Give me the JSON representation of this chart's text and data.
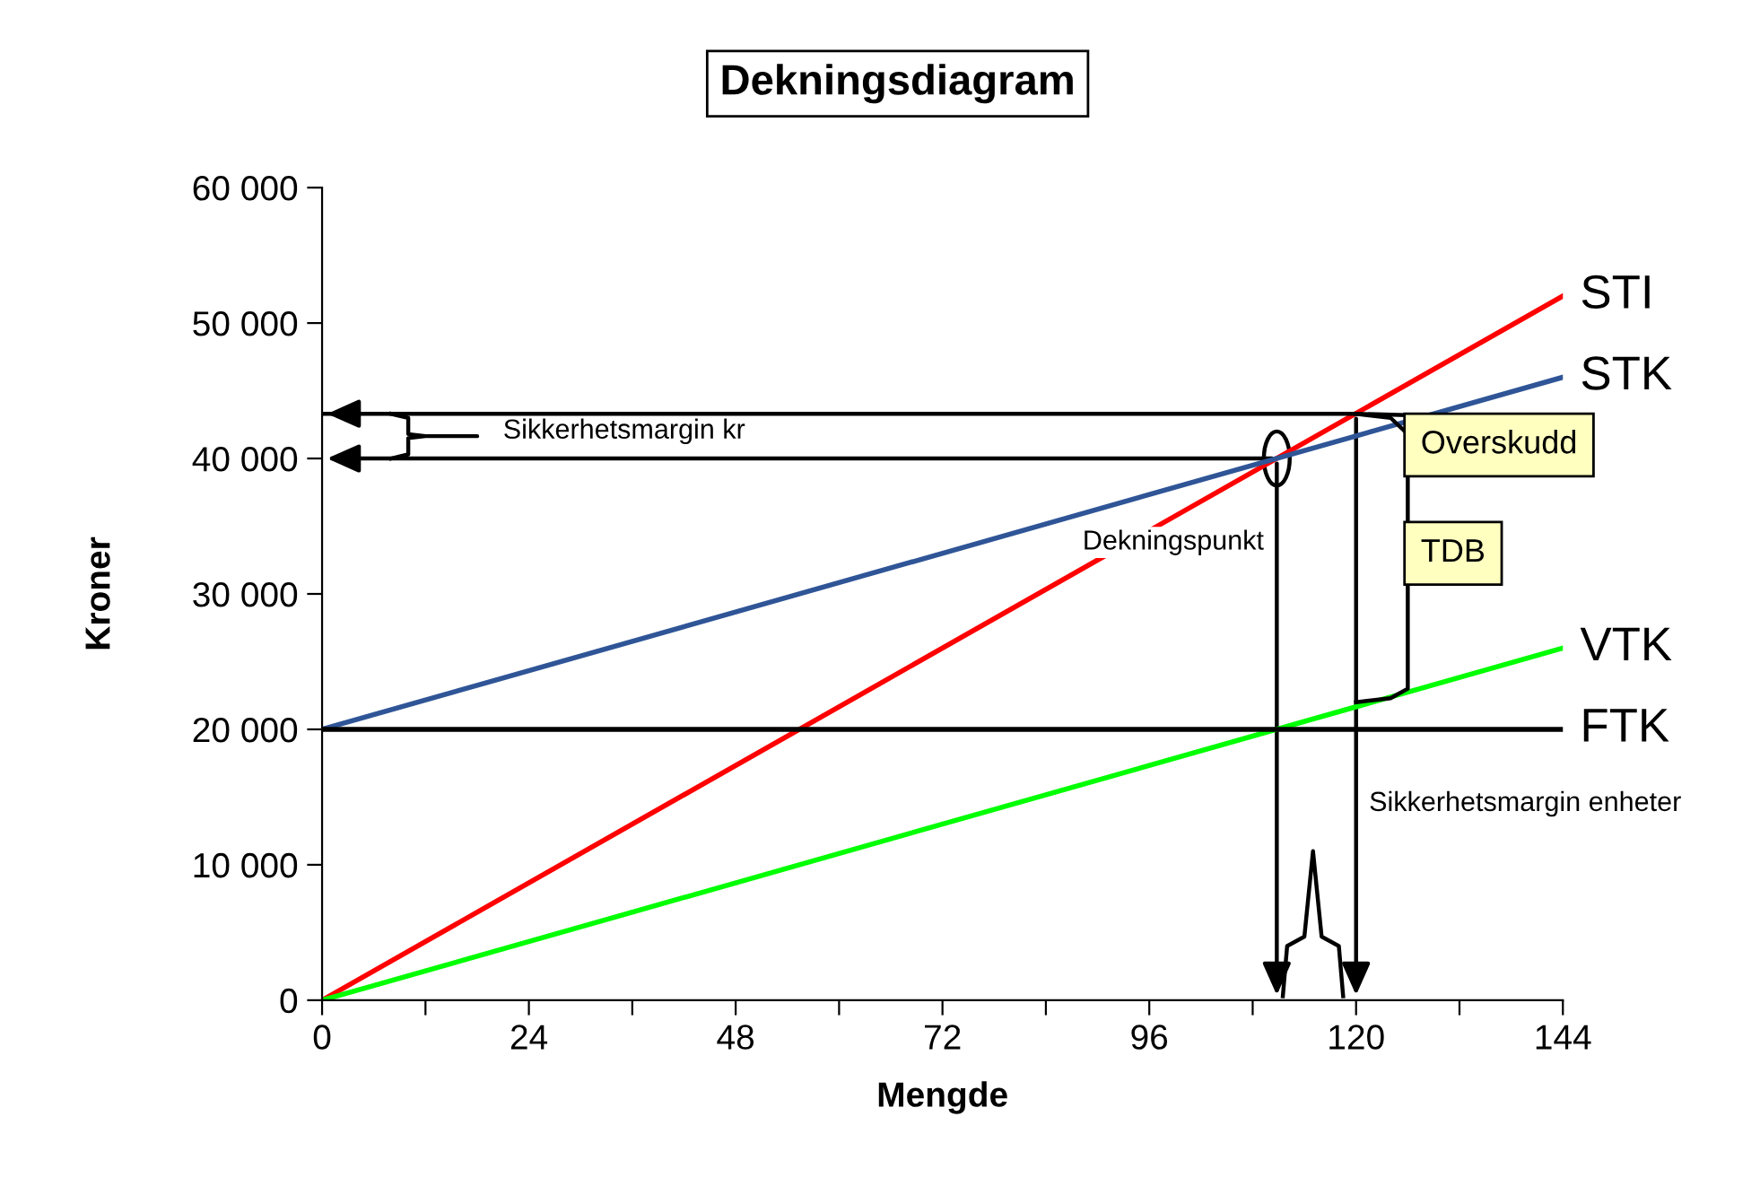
{
  "chart_data": {
    "type": "line",
    "title": "Dekningsdiagram",
    "xlabel": "Mengde",
    "ylabel": "Kroner",
    "series": [
      {
        "name": "STI",
        "color": "#ff0000",
        "values": [
          0,
          52000
        ]
      },
      {
        "name": "STK",
        "color": "#2f5597",
        "values": [
          20000,
          46000
        ]
      },
      {
        "name": "VTK",
        "color": "#00ff00",
        "values": [
          0,
          26000
        ]
      },
      {
        "name": "FTK",
        "color": "#000000",
        "values": [
          20000,
          20000
        ]
      }
    ],
    "x": [
      0,
      144
    ],
    "ref_lines": [
      {
        "axis": "y",
        "value": 43300,
        "color": "#000000"
      }
    ],
    "annotations": [
      "Sikkerhetsmargin kr",
      {
        "text": "Dekningspunkt",
        "x": 110.8,
        "y": 40000
      },
      {
        "text": "Overskudd",
        "x": 120,
        "y": 43300
      },
      "TDB",
      "Sikkerhetsmargin enheter"
    ],
    "xlim": [
      0,
      144
    ],
    "ylim": [
      0,
      60000
    ],
    "xticks": [
      0,
      {
        "value": 12,
        "label": null
      },
      24,
      {
        "value": 36,
        "label": null
      },
      48,
      {
        "value": 60,
        "label": null
      },
      72,
      {
        "value": 84,
        "label": null
      },
      96,
      {
        "value": 108,
        "label": null
      },
      120,
      {
        "value": 132,
        "label": null
      },
      144
    ],
    "yticks": [
      {
        "value": 0,
        "label": "0"
      },
      {
        "value": 10000,
        "label": "10 000"
      },
      {
        "value": 20000,
        "label": "20 000"
      },
      {
        "value": 30000,
        "label": "30 000"
      },
      {
        "value": 40000,
        "label": "40 000"
      },
      {
        "value": 50000,
        "label": "50 000"
      },
      {
        "value": 60000,
        "label": "60 000"
      }
    ],
    "grid": false,
    "legend": false,
    "line_style": "solid"
  }
}
